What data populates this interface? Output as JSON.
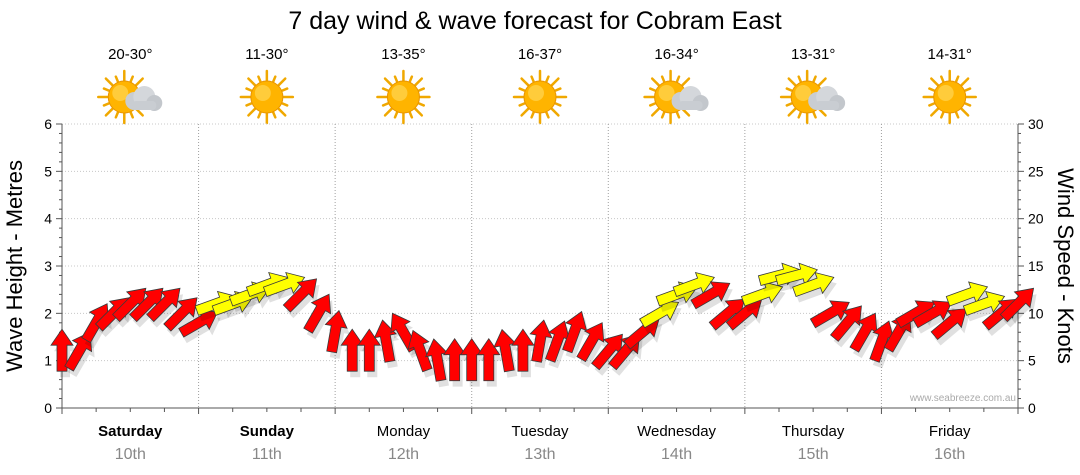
{
  "chart_data": {
    "type": "line",
    "title": "7 day wind & wave forecast for Cobram East",
    "ylabel_left": "Wave Height - Metres",
    "ylabel_right": "Wind Speed - Knots",
    "ylim_left": [
      0,
      6
    ],
    "ylim_right": [
      0,
      30
    ],
    "yticks_left": [
      "0",
      "1",
      "2",
      "3",
      "4",
      "5",
      "6"
    ],
    "yticks_right": [
      "0",
      "5",
      "10",
      "15",
      "20",
      "25",
      "30"
    ],
    "grid": true,
    "watermark": "www.seabreeze.com.au",
    "days": [
      {
        "day": "Saturday",
        "date": "10th",
        "temp": "20-30°",
        "icon": "sun-cloud-icon",
        "bold": true
      },
      {
        "day": "Sunday",
        "date": "11th",
        "temp": "11-30°",
        "icon": "sun-icon",
        "bold": true
      },
      {
        "day": "Monday",
        "date": "12th",
        "temp": "13-35°",
        "icon": "sun-icon",
        "bold": false
      },
      {
        "day": "Tuesday",
        "date": "13th",
        "temp": "16-37°",
        "icon": "sun-icon",
        "bold": false
      },
      {
        "day": "Wednesday",
        "date": "14th",
        "temp": "16-34°",
        "icon": "sun-cloud-icon",
        "bold": false
      },
      {
        "day": "Thursday",
        "date": "15th",
        "temp": "13-31°",
        "icon": "sun-cloud-icon",
        "bold": false
      },
      {
        "day": "Friday",
        "date": "16th",
        "temp": "14-31°",
        "icon": "sun-icon",
        "bold": false
      }
    ],
    "series": [
      {
        "name": "Wind Speed (knots)",
        "x_hours": [
          0,
          3,
          6,
          9,
          12,
          15,
          18,
          21,
          24,
          27,
          30,
          33,
          36,
          39,
          42,
          45,
          48,
          51,
          54,
          57,
          60,
          63,
          66,
          69,
          72,
          75,
          78,
          81,
          84,
          87,
          90,
          93,
          96,
          99,
          102,
          105,
          108,
          111,
          114,
          117,
          120,
          123,
          126,
          129,
          132,
          135,
          138,
          141,
          144,
          147,
          150,
          153,
          156,
          159,
          162,
          165,
          168
        ],
        "values": [
          6,
          6,
          9,
          10,
          11,
          11,
          11,
          10,
          9,
          11,
          11,
          12,
          13,
          13,
          12,
          10,
          8,
          6,
          6,
          7,
          8,
          6,
          5,
          5,
          5,
          5,
          6,
          6,
          7,
          7,
          8,
          7,
          6,
          6,
          8,
          10,
          12,
          13,
          12,
          10,
          10,
          12,
          14,
          14,
          13,
          10,
          9,
          8,
          7,
          8,
          10,
          10,
          9,
          12,
          11,
          10,
          11
        ],
        "colors": [
          "red",
          "red",
          "red",
          "red",
          "red",
          "red",
          "red",
          "red",
          "red",
          "yellow",
          "yellow",
          "yellow",
          "yellow",
          "yellow",
          "red",
          "red",
          "red",
          "red",
          "red",
          "red",
          "red",
          "red",
          "red",
          "red",
          "red",
          "red",
          "red",
          "red",
          "red",
          "red",
          "red",
          "red",
          "red",
          "red",
          "red",
          "yellow",
          "yellow",
          "yellow",
          "red",
          "red",
          "red",
          "yellow",
          "yellow",
          "yellow",
          "yellow",
          "red",
          "red",
          "red",
          "red",
          "red",
          "red",
          "red",
          "red",
          "yellow",
          "yellow",
          "red",
          "red"
        ],
        "directions_deg": [
          90,
          60,
          60,
          45,
          45,
          45,
          45,
          45,
          30,
          20,
          20,
          20,
          20,
          20,
          45,
          60,
          80,
          90,
          90,
          100,
          120,
          110,
          100,
          90,
          90,
          90,
          100,
          90,
          80,
          70,
          70,
          60,
          50,
          50,
          40,
          30,
          20,
          20,
          30,
          40,
          40,
          20,
          15,
          15,
          20,
          30,
          50,
          60,
          70,
          60,
          30,
          30,
          40,
          20,
          20,
          40,
          45
        ]
      }
    ]
  },
  "legend_colors": {
    "strong": "#ff0000",
    "moderate": "#ffff00"
  }
}
